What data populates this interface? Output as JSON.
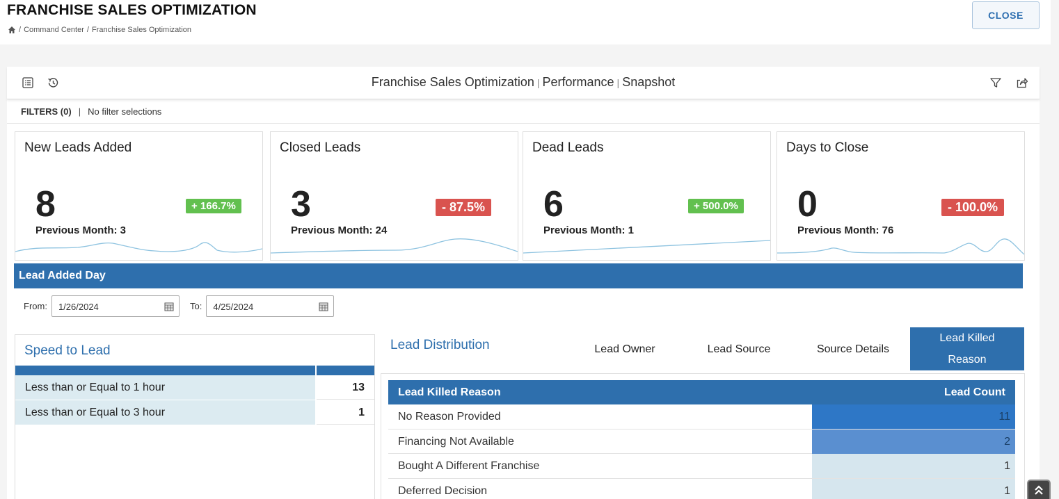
{
  "header": {
    "title": "FRANCHISE SALES OPTIMIZATION",
    "breadcrumb": [
      "Command Center",
      "Franchise Sales Optimization"
    ],
    "close_label": "CLOSE"
  },
  "toolbar": {
    "title_parts": [
      "Franchise Sales Optimization",
      "Performance",
      "Snapshot"
    ],
    "separator": "|"
  },
  "filters": {
    "label": "FILTERS (0)",
    "divider": "|",
    "text": "No filter selections"
  },
  "kpis": [
    {
      "title": "New Leads Added",
      "value": "8",
      "prev": "Previous Month: 3",
      "change": "+ 166.7%",
      "trend": "up"
    },
    {
      "title": "Closed Leads",
      "value": "3",
      "prev": "Previous Month: 24",
      "change": "- 87.5%",
      "trend": "down"
    },
    {
      "title": "Dead Leads",
      "value": "6",
      "prev": "Previous Month: 1",
      "change": "+ 500.0%",
      "trend": "up"
    },
    {
      "title": "Days to Close",
      "value": "0",
      "prev": "Previous Month: 76",
      "change": "- 100.0%",
      "trend": "down"
    }
  ],
  "section": {
    "title": "Lead Added Day"
  },
  "dates": {
    "from_label": "From:",
    "from_value": "1/26/2024",
    "to_label": "To:",
    "to_value": "4/25/2024"
  },
  "speed_to_lead": {
    "title": "Speed to Lead",
    "rows": [
      {
        "label": "Less than or Equal to 1 hour",
        "value": "13"
      },
      {
        "label": "Less than or Equal to 3 hour",
        "value": "1"
      }
    ]
  },
  "distribution": {
    "title": "Lead Distribution",
    "tabs": [
      "Lead Owner",
      "Lead Source",
      "Source Details",
      "Lead Killed Reason"
    ],
    "active_tab": "Lead Killed Reason",
    "table": {
      "headers": [
        "Lead Killed Reason",
        "Lead Count"
      ],
      "rows": [
        {
          "reason": "No Reason Provided",
          "count": "11"
        },
        {
          "reason": "Financing Not Available",
          "count": "2"
        },
        {
          "reason": "Bought A Different Franchise",
          "count": "1"
        },
        {
          "reason": "Deferred Decision",
          "count": "1"
        }
      ]
    }
  },
  "colors": {
    "accent": "#2e6fad",
    "heat_high": "#2e77c6",
    "heat_mid": "#5a8fd0",
    "heat_low": "#d6e6ee",
    "badge_up": "#62c04f",
    "badge_down": "#d9534f"
  }
}
